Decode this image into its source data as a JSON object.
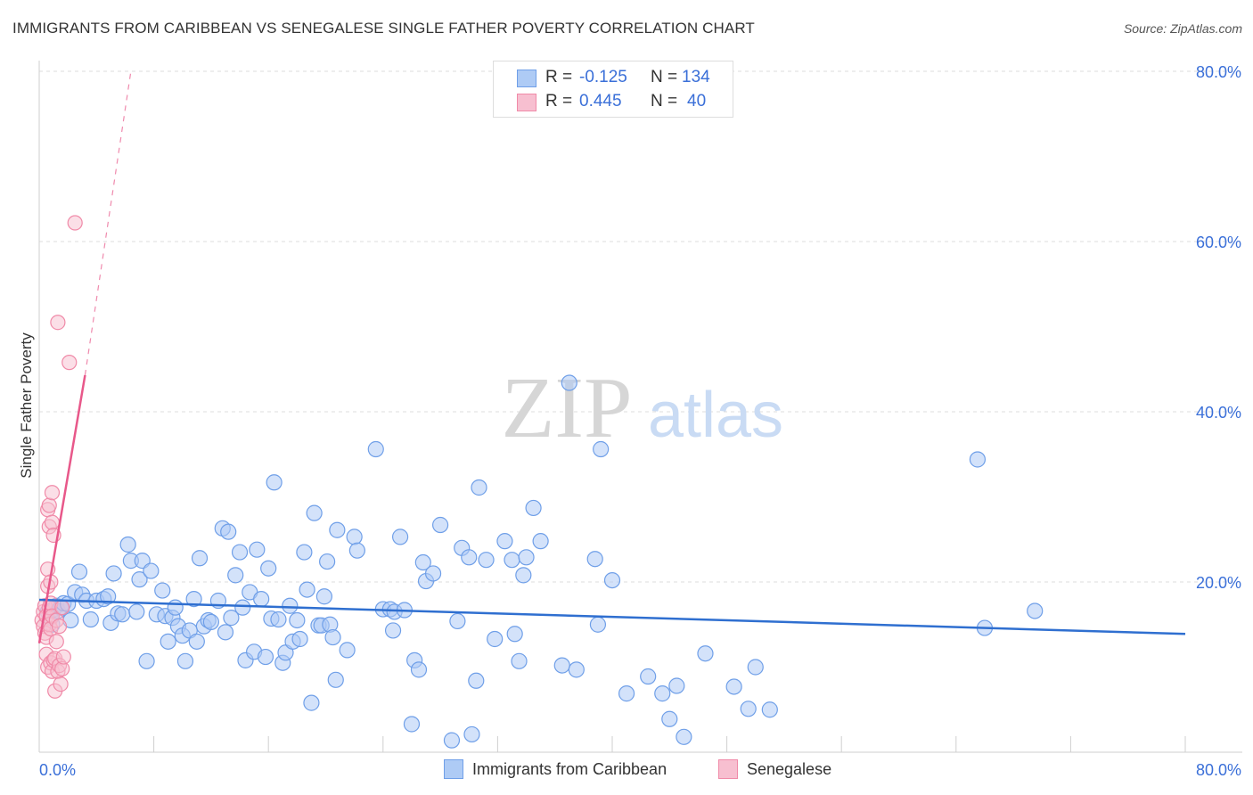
{
  "title": "IMMIGRANTS FROM CARIBBEAN VS SENEGALESE SINGLE FATHER POVERTY CORRELATION CHART",
  "source": "Source: ZipAtlas.com",
  "watermark": {
    "zip": "ZIP",
    "atlas": "atlas"
  },
  "legend": {
    "r_label": "R =",
    "n_label": "N =",
    "rows": [
      {
        "r": "-0.125",
        "n": "134"
      },
      {
        "r": "0.445",
        "n": "40"
      }
    ]
  },
  "colors": {
    "blue": "#6f9fe8",
    "blue_fill": "#aecbf5",
    "blue_line": "#2f6fd0",
    "pink": "#f08aa8",
    "pink_fill": "#f7bfd0",
    "pink_line": "#e8588a",
    "axis_text": "#3a6fd8"
  },
  "chart_data": {
    "type": "scatter",
    "title": "IMMIGRANTS FROM CARIBBEAN VS SENEGALESE SINGLE FATHER POVERTY CORRELATION CHART",
    "xlabel": "",
    "ylabel": "Single Father Poverty",
    "xlim": [
      0,
      0.8
    ],
    "ylim": [
      0,
      0.8
    ],
    "x_tick_labels": [
      "0.0%",
      "80.0%"
    ],
    "y_tick_labels": [
      "20.0%",
      "40.0%",
      "60.0%",
      "80.0%"
    ],
    "y_ticks": [
      0.2,
      0.4,
      0.6,
      0.8
    ],
    "grid": true,
    "series": [
      {
        "name": "Immigrants from Caribbean",
        "r": -0.125,
        "n": 134,
        "trend": {
          "x": [
            0.0,
            0.8
          ],
          "y": [
            0.179,
            0.139
          ]
        },
        "points": [
          [
            0.006,
            0.165
          ],
          [
            0.008,
            0.158
          ],
          [
            0.009,
            0.15
          ],
          [
            0.01,
            0.168
          ],
          [
            0.012,
            0.172
          ],
          [
            0.013,
            0.166
          ],
          [
            0.015,
            0.17
          ],
          [
            0.017,
            0.175
          ],
          [
            0.02,
            0.174
          ],
          [
            0.022,
            0.155
          ],
          [
            0.025,
            0.188
          ],
          [
            0.028,
            0.212
          ],
          [
            0.03,
            0.185
          ],
          [
            0.033,
            0.178
          ],
          [
            0.036,
            0.156
          ],
          [
            0.04,
            0.178
          ],
          [
            0.045,
            0.18
          ],
          [
            0.048,
            0.183
          ],
          [
            0.05,
            0.152
          ],
          [
            0.052,
            0.21
          ],
          [
            0.055,
            0.163
          ],
          [
            0.058,
            0.162
          ],
          [
            0.062,
            0.244
          ],
          [
            0.064,
            0.225
          ],
          [
            0.068,
            0.165
          ],
          [
            0.07,
            0.203
          ],
          [
            0.072,
            0.225
          ],
          [
            0.075,
            0.107
          ],
          [
            0.078,
            0.213
          ],
          [
            0.082,
            0.162
          ],
          [
            0.086,
            0.19
          ],
          [
            0.088,
            0.16
          ],
          [
            0.09,
            0.13
          ],
          [
            0.093,
            0.158
          ],
          [
            0.095,
            0.17
          ],
          [
            0.097,
            0.148
          ],
          [
            0.1,
            0.137
          ],
          [
            0.102,
            0.107
          ],
          [
            0.105,
            0.143
          ],
          [
            0.108,
            0.18
          ],
          [
            0.11,
            0.13
          ],
          [
            0.112,
            0.228
          ],
          [
            0.115,
            0.148
          ],
          [
            0.118,
            0.155
          ],
          [
            0.12,
            0.153
          ],
          [
            0.125,
            0.178
          ],
          [
            0.128,
            0.263
          ],
          [
            0.13,
            0.141
          ],
          [
            0.132,
            0.259
          ],
          [
            0.134,
            0.158
          ],
          [
            0.137,
            0.208
          ],
          [
            0.14,
            0.235
          ],
          [
            0.142,
            0.17
          ],
          [
            0.144,
            0.108
          ],
          [
            0.147,
            0.188
          ],
          [
            0.15,
            0.118
          ],
          [
            0.152,
            0.238
          ],
          [
            0.155,
            0.18
          ],
          [
            0.158,
            0.112
          ],
          [
            0.16,
            0.216
          ],
          [
            0.162,
            0.157
          ],
          [
            0.164,
            0.317
          ],
          [
            0.167,
            0.156
          ],
          [
            0.17,
            0.105
          ],
          [
            0.172,
            0.117
          ],
          [
            0.175,
            0.172
          ],
          [
            0.177,
            0.13
          ],
          [
            0.18,
            0.155
          ],
          [
            0.182,
            0.133
          ],
          [
            0.185,
            0.235
          ],
          [
            0.187,
            0.191
          ],
          [
            0.19,
            0.058
          ],
          [
            0.192,
            0.281
          ],
          [
            0.195,
            0.149
          ],
          [
            0.197,
            0.149
          ],
          [
            0.199,
            0.183
          ],
          [
            0.201,
            0.224
          ],
          [
            0.203,
            0.15
          ],
          [
            0.205,
            0.135
          ],
          [
            0.207,
            0.085
          ],
          [
            0.208,
            0.261
          ],
          [
            0.215,
            0.12
          ],
          [
            0.22,
            0.253
          ],
          [
            0.222,
            0.237
          ],
          [
            0.235,
            0.356
          ],
          [
            0.24,
            0.168
          ],
          [
            0.245,
            0.168
          ],
          [
            0.247,
            0.143
          ],
          [
            0.248,
            0.165
          ],
          [
            0.252,
            0.253
          ],
          [
            0.255,
            0.167
          ],
          [
            0.26,
            0.033
          ],
          [
            0.262,
            0.108
          ],
          [
            0.265,
            0.097
          ],
          [
            0.268,
            0.223
          ],
          [
            0.27,
            0.201
          ],
          [
            0.275,
            0.21
          ],
          [
            0.28,
            0.267
          ],
          [
            0.288,
            0.014
          ],
          [
            0.292,
            0.154
          ],
          [
            0.295,
            0.24
          ],
          [
            0.3,
            0.229
          ],
          [
            0.302,
            0.021
          ],
          [
            0.305,
            0.084
          ],
          [
            0.307,
            0.311
          ],
          [
            0.312,
            0.226
          ],
          [
            0.318,
            0.133
          ],
          [
            0.325,
            0.248
          ],
          [
            0.33,
            0.226
          ],
          [
            0.332,
            0.139
          ],
          [
            0.335,
            0.107
          ],
          [
            0.338,
            0.208
          ],
          [
            0.34,
            0.229
          ],
          [
            0.345,
            0.287
          ],
          [
            0.35,
            0.248
          ],
          [
            0.365,
            0.102
          ],
          [
            0.37,
            0.434
          ],
          [
            0.375,
            0.097
          ],
          [
            0.388,
            0.227
          ],
          [
            0.39,
            0.15
          ],
          [
            0.392,
            0.356
          ],
          [
            0.4,
            0.202
          ],
          [
            0.41,
            0.069
          ],
          [
            0.425,
            0.089
          ],
          [
            0.435,
            0.069
          ],
          [
            0.44,
            0.039
          ],
          [
            0.445,
            0.078
          ],
          [
            0.45,
            0.018
          ],
          [
            0.465,
            0.116
          ],
          [
            0.485,
            0.077
          ],
          [
            0.495,
            0.051
          ],
          [
            0.5,
            0.1
          ],
          [
            0.51,
            0.05
          ],
          [
            0.655,
            0.344
          ],
          [
            0.66,
            0.146
          ],
          [
            0.695,
            0.166
          ]
        ]
      },
      {
        "name": "Senegalese",
        "r": 0.445,
        "n": 40,
        "trend": {
          "x": [
            0.0,
            0.032
          ],
          "y": [
            0.128,
            0.443
          ],
          "dashed_x": [
            0.032,
            0.064
          ],
          "dashed_y": [
            0.443,
            0.8
          ]
        },
        "points": [
          [
            0.002,
            0.155
          ],
          [
            0.003,
            0.165
          ],
          [
            0.003,
            0.148
          ],
          [
            0.004,
            0.14
          ],
          [
            0.004,
            0.172
          ],
          [
            0.005,
            0.16
          ],
          [
            0.005,
            0.135
          ],
          [
            0.005,
            0.115
          ],
          [
            0.006,
            0.195
          ],
          [
            0.006,
            0.215
          ],
          [
            0.006,
            0.285
          ],
          [
            0.006,
            0.1
          ],
          [
            0.007,
            0.17
          ],
          [
            0.007,
            0.15
          ],
          [
            0.007,
            0.29
          ],
          [
            0.007,
            0.265
          ],
          [
            0.008,
            0.2
          ],
          [
            0.008,
            0.175
          ],
          [
            0.008,
            0.145
          ],
          [
            0.008,
            0.105
          ],
          [
            0.009,
            0.305
          ],
          [
            0.009,
            0.27
          ],
          [
            0.009,
            0.16
          ],
          [
            0.009,
            0.095
          ],
          [
            0.01,
            0.255
          ],
          [
            0.01,
            0.108
          ],
          [
            0.011,
            0.11
          ],
          [
            0.011,
            0.072
          ],
          [
            0.012,
            0.13
          ],
          [
            0.012,
            0.155
          ],
          [
            0.013,
            0.505
          ],
          [
            0.013,
            0.095
          ],
          [
            0.014,
            0.148
          ],
          [
            0.014,
            0.102
          ],
          [
            0.015,
            0.08
          ],
          [
            0.016,
            0.17
          ],
          [
            0.016,
            0.098
          ],
          [
            0.017,
            0.112
          ],
          [
            0.021,
            0.458
          ],
          [
            0.025,
            0.622
          ]
        ]
      }
    ],
    "legend_position": "top-center"
  },
  "bottom_legend": [
    {
      "label": "Immigrants from Caribbean"
    },
    {
      "label": "Senegalese"
    }
  ]
}
